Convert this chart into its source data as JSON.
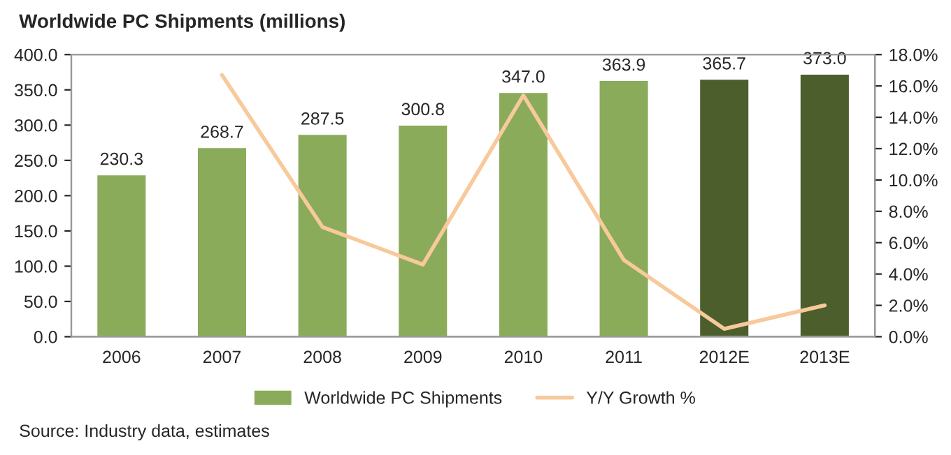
{
  "chart_data": {
    "type": "bar",
    "title": "Worldwide PC Shipments (millions)",
    "categories": [
      "2006",
      "2007",
      "2008",
      "2009",
      "2010",
      "2011",
      "2012E",
      "2013E"
    ],
    "series": [
      {
        "name": "Worldwide PC Shipments",
        "color": "#8aab5a",
        "colors": [
          "#8aab5a",
          "#8aab5a",
          "#8aab5a",
          "#8aab5a",
          "#8aab5a",
          "#8aab5a",
          "#4b5e2c",
          "#4b5e2c"
        ],
        "values": [
          230.3,
          268.7,
          287.5,
          300.8,
          347.0,
          363.9,
          365.7,
          373.0
        ],
        "value_labels": [
          "230.3",
          "268.7",
          "287.5",
          "300.8",
          "347.0",
          "363.9",
          "365.7",
          "373.0"
        ]
      },
      {
        "name": "Y/Y Growth %",
        "type": "line",
        "axis": "y2",
        "color": "#f7c99b",
        "values": [
          null,
          16.7,
          7.0,
          4.6,
          15.4,
          4.9,
          0.5,
          2.0
        ]
      }
    ],
    "ylim": [
      0,
      400
    ],
    "yticks": [
      {
        "value": 0,
        "label": "0.0"
      },
      {
        "value": 50,
        "label": "50.0"
      },
      {
        "value": 100,
        "label": "100.0"
      },
      {
        "value": 150,
        "label": "150.0"
      },
      {
        "value": 200,
        "label": "200.0"
      },
      {
        "value": 250,
        "label": "250.0"
      },
      {
        "value": 300,
        "label": "300.0"
      },
      {
        "value": 350,
        "label": "350.0"
      },
      {
        "value": 400,
        "label": "400.0"
      }
    ],
    "y2lim": [
      0,
      18
    ],
    "y2ticks": [
      {
        "value": 0,
        "label": "0.0%"
      },
      {
        "value": 2,
        "label": "2.0%"
      },
      {
        "value": 4,
        "label": "4.0%"
      },
      {
        "value": 6,
        "label": "6.0%"
      },
      {
        "value": 8,
        "label": "8.0%"
      },
      {
        "value": 10,
        "label": "10.0%"
      },
      {
        "value": 12,
        "label": "12.0%"
      },
      {
        "value": 14,
        "label": "14.0%"
      },
      {
        "value": 16,
        "label": "16.0%"
      },
      {
        "value": 18,
        "label": "18.0%"
      }
    ],
    "legend": "bottom",
    "grid": false,
    "annotations": [
      "Source: Industry data, estimates"
    ]
  }
}
